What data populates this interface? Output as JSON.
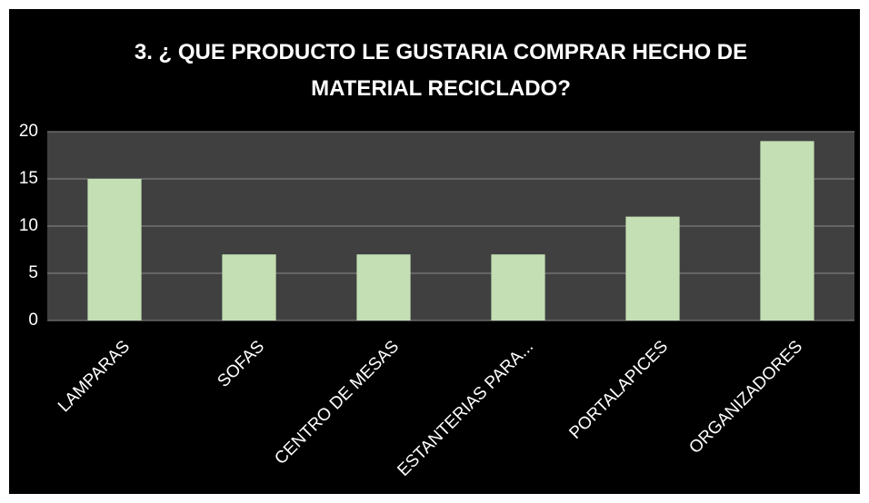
{
  "chart_data": {
    "type": "bar",
    "title": "3. ¿ QUE PRODUCTO LE GUSTARIA COMPRAR HECHO DE MATERIAL RECICLADO?",
    "categories": [
      "LAMPARAS",
      "SOFAS",
      "CENTRO DE MESAS",
      "ESTANTERIAS PARA...",
      "PORTALAPICES",
      "ORGANIZADORES"
    ],
    "values": [
      15,
      7,
      7,
      7,
      11,
      19
    ],
    "color": "#c3dfb3",
    "ylim": [
      0,
      20
    ],
    "yticks": [
      0,
      5,
      10,
      15,
      20
    ],
    "grid": true
  }
}
